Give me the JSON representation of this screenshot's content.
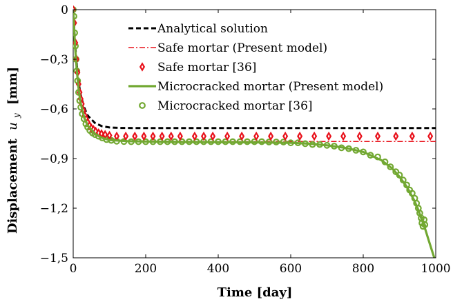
{
  "chart_data": {
    "type": "line",
    "xlabel": "Time [day]",
    "ylabel": "Displacement u_y [mm]",
    "ylabel_main": "Displacement",
    "ylabel_var": "u",
    "ylabel_sub": "y",
    "ylabel_unit": "[mm]",
    "xlim": [
      0,
      1000
    ],
    "ylim": [
      -1.5,
      0
    ],
    "x_ticks": [
      0,
      200,
      400,
      600,
      800,
      1000
    ],
    "x_tick_labels": [
      "0",
      "200",
      "400",
      "600",
      "800",
      "1000"
    ],
    "y_ticks": [
      0,
      -0.3,
      -0.6,
      -0.9,
      -1.2,
      -1.5
    ],
    "y_tick_labels": [
      "0",
      "−0,3",
      "−0,6",
      "−0,9",
      "−1,2",
      "−1,5"
    ],
    "grid": false,
    "legend_position": "top-right",
    "colors": {
      "analytical": "#000000",
      "safe_model": "#e8101a",
      "safe_ref": "#e8101a",
      "micro_model": "#72a832",
      "micro_ref": "#72a832"
    },
    "series": [
      {
        "name": "Analytical solution",
        "style": "dashed-line",
        "points": [
          [
            0,
            0
          ],
          [
            5,
            -0.2
          ],
          [
            10,
            -0.34
          ],
          [
            15,
            -0.44
          ],
          [
            20,
            -0.51
          ],
          [
            30,
            -0.59
          ],
          [
            40,
            -0.64
          ],
          [
            60,
            -0.685
          ],
          [
            80,
            -0.705
          ],
          [
            100,
            -0.712
          ],
          [
            130,
            -0.715
          ],
          [
            200,
            -0.716
          ],
          [
            300,
            -0.716
          ],
          [
            400,
            -0.716
          ],
          [
            500,
            -0.716
          ],
          [
            600,
            -0.716
          ],
          [
            700,
            -0.716
          ],
          [
            800,
            -0.716
          ],
          [
            900,
            -0.716
          ],
          [
            1000,
            -0.716
          ]
        ]
      },
      {
        "name": "Safe mortar (Present model)",
        "style": "dashdot-line",
        "points": [
          [
            0,
            0
          ],
          [
            5,
            -0.21
          ],
          [
            10,
            -0.36
          ],
          [
            15,
            -0.47
          ],
          [
            20,
            -0.55
          ],
          [
            30,
            -0.64
          ],
          [
            40,
            -0.69
          ],
          [
            60,
            -0.74
          ],
          [
            80,
            -0.765
          ],
          [
            100,
            -0.78
          ],
          [
            150,
            -0.79
          ],
          [
            200,
            -0.795
          ],
          [
            400,
            -0.797
          ],
          [
            600,
            -0.797
          ],
          [
            800,
            -0.797
          ],
          [
            1000,
            -0.797
          ]
        ]
      },
      {
        "name": "Safe mortar [36]",
        "style": "diamond-markers",
        "points": [
          [
            0,
            0
          ],
          [
            3,
            -0.08
          ],
          [
            6,
            -0.2
          ],
          [
            9,
            -0.3
          ],
          [
            12,
            -0.38
          ],
          [
            15,
            -0.45
          ],
          [
            18,
            -0.5
          ],
          [
            21,
            -0.54
          ],
          [
            24,
            -0.57
          ],
          [
            28,
            -0.61
          ],
          [
            32,
            -0.64
          ],
          [
            36,
            -0.66
          ],
          [
            40,
            -0.68
          ],
          [
            45,
            -0.7
          ],
          [
            50,
            -0.715
          ],
          [
            56,
            -0.725
          ],
          [
            62,
            -0.735
          ],
          [
            70,
            -0.745
          ],
          [
            78,
            -0.75
          ],
          [
            88,
            -0.755
          ],
          [
            100,
            -0.76
          ],
          [
            120,
            -0.765
          ],
          [
            145,
            -0.765
          ],
          [
            170,
            -0.765
          ],
          [
            195,
            -0.765
          ],
          [
            220,
            -0.765
          ],
          [
            245,
            -0.765
          ],
          [
            270,
            -0.765
          ],
          [
            295,
            -0.765
          ],
          [
            335,
            -0.765
          ],
          [
            360,
            -0.765
          ],
          [
            385,
            -0.765
          ],
          [
            425,
            -0.765
          ],
          [
            465,
            -0.765
          ],
          [
            505,
            -0.765
          ],
          [
            545,
            -0.765
          ],
          [
            585,
            -0.765
          ],
          [
            625,
            -0.765
          ],
          [
            665,
            -0.765
          ],
          [
            705,
            -0.765
          ],
          [
            745,
            -0.765
          ],
          [
            790,
            -0.765
          ],
          [
            840,
            -0.765
          ],
          [
            890,
            -0.765
          ],
          [
            935,
            -0.765
          ],
          [
            985,
            -0.765
          ]
        ]
      },
      {
        "name": "Microcracked mortar (Present model)",
        "style": "solid-line",
        "points": [
          [
            0,
            0
          ],
          [
            5,
            -0.22
          ],
          [
            10,
            -0.37
          ],
          [
            15,
            -0.48
          ],
          [
            20,
            -0.56
          ],
          [
            30,
            -0.65
          ],
          [
            40,
            -0.7
          ],
          [
            60,
            -0.75
          ],
          [
            80,
            -0.775
          ],
          [
            100,
            -0.788
          ],
          [
            150,
            -0.795
          ],
          [
            200,
            -0.797
          ],
          [
            300,
            -0.8
          ],
          [
            400,
            -0.801
          ],
          [
            500,
            -0.802
          ],
          [
            600,
            -0.805
          ],
          [
            650,
            -0.81
          ],
          [
            700,
            -0.82
          ],
          [
            750,
            -0.835
          ],
          [
            800,
            -0.86
          ],
          [
            850,
            -0.91
          ],
          [
            880,
            -0.96
          ],
          [
            900,
            -1.01
          ],
          [
            920,
            -1.07
          ],
          [
            940,
            -1.15
          ],
          [
            950,
            -1.2
          ],
          [
            960,
            -1.26
          ],
          [
            970,
            -1.32
          ],
          [
            980,
            -1.39
          ],
          [
            990,
            -1.46
          ],
          [
            996,
            -1.5
          ]
        ]
      },
      {
        "name": "Microcracked mortar [36]",
        "style": "circle-markers",
        "points": [
          [
            0,
            0
          ],
          [
            2,
            -0.04
          ],
          [
            4,
            -0.14
          ],
          [
            6,
            -0.22
          ],
          [
            8,
            -0.3
          ],
          [
            10,
            -0.37
          ],
          [
            12,
            -0.43
          ],
          [
            15,
            -0.5
          ],
          [
            18,
            -0.55
          ],
          [
            21,
            -0.59
          ],
          [
            25,
            -0.63
          ],
          [
            30,
            -0.66
          ],
          [
            35,
            -0.69
          ],
          [
            40,
            -0.71
          ],
          [
            46,
            -0.73
          ],
          [
            53,
            -0.745
          ],
          [
            60,
            -0.755
          ],
          [
            70,
            -0.765
          ],
          [
            80,
            -0.775
          ],
          [
            92,
            -0.785
          ],
          [
            105,
            -0.79
          ],
          [
            120,
            -0.795
          ],
          [
            140,
            -0.797
          ],
          [
            160,
            -0.798
          ],
          [
            180,
            -0.798
          ],
          [
            200,
            -0.798
          ],
          [
            220,
            -0.798
          ],
          [
            240,
            -0.798
          ],
          [
            260,
            -0.798
          ],
          [
            280,
            -0.798
          ],
          [
            300,
            -0.798
          ],
          [
            320,
            -0.798
          ],
          [
            340,
            -0.798
          ],
          [
            360,
            -0.798
          ],
          [
            380,
            -0.798
          ],
          [
            400,
            -0.798
          ],
          [
            420,
            -0.798
          ],
          [
            440,
            -0.798
          ],
          [
            460,
            -0.798
          ],
          [
            480,
            -0.798
          ],
          [
            500,
            -0.798
          ],
          [
            520,
            -0.798
          ],
          [
            540,
            -0.8
          ],
          [
            560,
            -0.8
          ],
          [
            580,
            -0.8
          ],
          [
            600,
            -0.805
          ],
          [
            620,
            -0.805
          ],
          [
            640,
            -0.81
          ],
          [
            660,
            -0.815
          ],
          [
            680,
            -0.815
          ],
          [
            700,
            -0.82
          ],
          [
            720,
            -0.825
          ],
          [
            740,
            -0.835
          ],
          [
            760,
            -0.84
          ],
          [
            780,
            -0.85
          ],
          [
            800,
            -0.86
          ],
          [
            820,
            -0.88
          ],
          [
            840,
            -0.89
          ],
          [
            860,
            -0.92
          ],
          [
            875,
            -0.95
          ],
          [
            890,
            -0.98
          ],
          [
            900,
            -1.0
          ],
          [
            910,
            -1.03
          ],
          [
            920,
            -1.06
          ],
          [
            928,
            -1.09
          ],
          [
            935,
            -1.11
          ],
          [
            942,
            -1.14
          ],
          [
            947,
            -1.17
          ],
          [
            952,
            -1.2
          ],
          [
            956,
            -1.23
          ],
          [
            960,
            -1.26
          ],
          [
            962,
            -1.29
          ],
          [
            965,
            -1.31
          ],
          [
            968,
            -1.27
          ],
          [
            970,
            -1.3
          ]
        ]
      }
    ]
  }
}
